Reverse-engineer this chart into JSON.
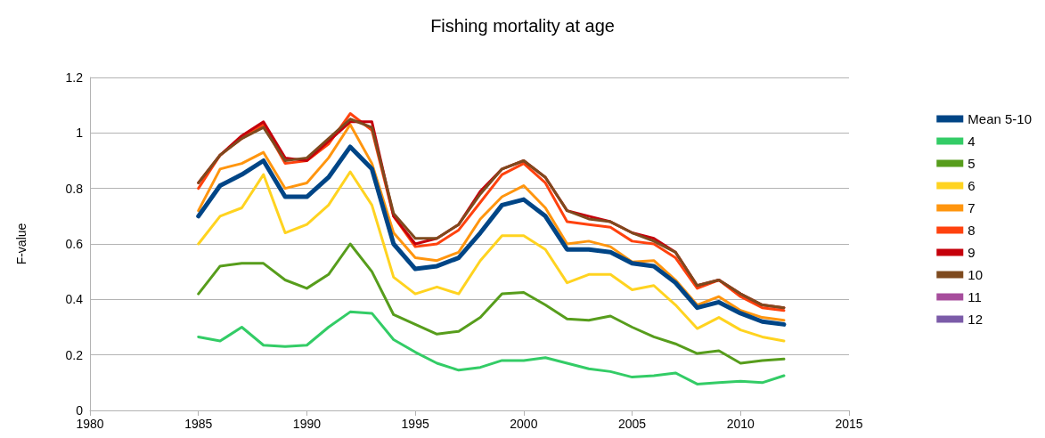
{
  "chart_data": {
    "type": "line",
    "title": "Fishing mortality at age",
    "ylabel": "F-value",
    "x": [
      1985,
      1986,
      1987,
      1988,
      1989,
      1990,
      1991,
      1992,
      1993,
      1994,
      1995,
      1996,
      1997,
      1998,
      1999,
      2000,
      2001,
      2002,
      2003,
      2004,
      2005,
      2006,
      2007,
      2008,
      2009,
      2010,
      2011,
      2012
    ],
    "xlim": [
      1980,
      2015
    ],
    "xticks": [
      1980,
      1985,
      1990,
      1995,
      2000,
      2005,
      2010,
      2015
    ],
    "ylim": [
      0,
      1.2
    ],
    "yticks": [
      0,
      0.2,
      0.4,
      0.6,
      0.8,
      1,
      1.2
    ],
    "grid": "y",
    "legend": "right",
    "marker": "none",
    "line_style": "solid",
    "series": [
      {
        "name": "Mean 5-10",
        "color": "#004586",
        "values": [
          0.7,
          0.81,
          0.85,
          0.9,
          0.77,
          0.77,
          0.84,
          0.95,
          0.87,
          0.6,
          0.51,
          0.52,
          0.55,
          0.64,
          0.74,
          0.76,
          0.7,
          0.58,
          0.58,
          0.57,
          0.53,
          0.52,
          0.46,
          0.37,
          0.39,
          0.35,
          0.32,
          0.31
        ]
      },
      {
        "name": "4",
        "color": "#33cc66",
        "values": [
          0.265,
          0.25,
          0.3,
          0.235,
          0.23,
          0.235,
          0.3,
          0.355,
          0.35,
          0.255,
          0.21,
          0.17,
          0.145,
          0.155,
          0.18,
          0.18,
          0.19,
          0.17,
          0.15,
          0.14,
          0.12,
          0.125,
          0.135,
          0.095,
          0.1,
          0.105,
          0.1,
          0.125
        ]
      },
      {
        "name": "5",
        "color": "#579d1c",
        "values": [
          0.42,
          0.52,
          0.53,
          0.53,
          0.47,
          0.44,
          0.49,
          0.6,
          0.5,
          0.345,
          0.31,
          0.275,
          0.285,
          0.335,
          0.42,
          0.425,
          0.38,
          0.33,
          0.325,
          0.34,
          0.3,
          0.265,
          0.24,
          0.205,
          0.215,
          0.17,
          0.18,
          0.185
        ]
      },
      {
        "name": "6",
        "color": "#ffd320",
        "values": [
          0.6,
          0.7,
          0.73,
          0.85,
          0.64,
          0.67,
          0.74,
          0.86,
          0.74,
          0.48,
          0.42,
          0.445,
          0.42,
          0.54,
          0.63,
          0.63,
          0.58,
          0.46,
          0.49,
          0.49,
          0.435,
          0.45,
          0.38,
          0.295,
          0.335,
          0.29,
          0.265,
          0.25
        ]
      },
      {
        "name": "7",
        "color": "#ff950e",
        "values": [
          0.72,
          0.87,
          0.89,
          0.93,
          0.8,
          0.82,
          0.91,
          1.03,
          0.89,
          0.64,
          0.55,
          0.54,
          0.57,
          0.69,
          0.77,
          0.81,
          0.73,
          0.6,
          0.61,
          0.59,
          0.535,
          0.54,
          0.47,
          0.38,
          0.41,
          0.36,
          0.335,
          0.325
        ]
      },
      {
        "name": "8",
        "color": "#ff420e",
        "values": [
          0.8,
          0.92,
          0.98,
          1.03,
          0.89,
          0.9,
          0.96,
          1.07,
          1.01,
          0.7,
          0.59,
          0.6,
          0.65,
          0.75,
          0.85,
          0.89,
          0.82,
          0.68,
          0.67,
          0.66,
          0.61,
          0.6,
          0.55,
          0.44,
          0.47,
          0.41,
          0.37,
          0.36
        ]
      },
      {
        "name": "9",
        "color": "#c5000b",
        "values": [
          0.82,
          0.92,
          0.99,
          1.04,
          0.91,
          0.9,
          0.97,
          1.04,
          1.04,
          0.7,
          0.6,
          0.62,
          0.67,
          0.79,
          0.87,
          0.9,
          0.84,
          0.72,
          0.7,
          0.68,
          0.64,
          0.62,
          0.57,
          0.45,
          0.47,
          0.42,
          0.38,
          0.37
        ]
      },
      {
        "name": "10",
        "color": "#7e4a1e",
        "values": [
          0.82,
          0.92,
          0.98,
          1.02,
          0.9,
          0.91,
          0.98,
          1.05,
          1.02,
          0.71,
          0.62,
          0.62,
          0.67,
          0.78,
          0.87,
          0.9,
          0.84,
          0.72,
          0.69,
          0.68,
          0.64,
          0.61,
          0.57,
          0.45,
          0.47,
          0.42,
          0.38,
          0.37
        ]
      },
      {
        "name": "11",
        "color": "#a64d9c",
        "values": [
          null,
          null,
          null,
          null,
          null,
          null,
          null,
          null,
          null,
          null,
          null,
          null,
          null,
          null,
          null,
          null,
          null,
          null,
          null,
          null,
          null,
          null,
          null,
          null,
          null,
          null,
          null,
          null
        ]
      },
      {
        "name": "12",
        "color": "#7b5ba8",
        "values": [
          null,
          null,
          null,
          null,
          null,
          null,
          null,
          null,
          null,
          null,
          null,
          null,
          null,
          null,
          null,
          null,
          null,
          null,
          null,
          null,
          null,
          null,
          null,
          null,
          null,
          null,
          null,
          null
        ]
      }
    ]
  }
}
